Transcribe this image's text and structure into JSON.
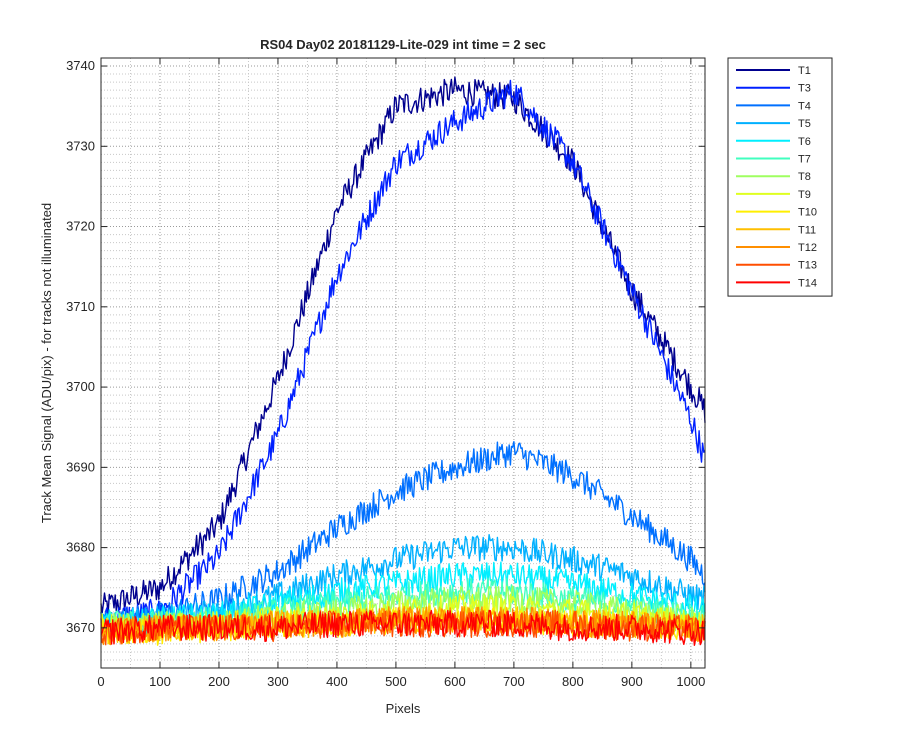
{
  "chart_data": {
    "type": "line",
    "title": "RS04 Day02 20181129-Lite-029 int time = 2 sec",
    "xlabel": "Pixels",
    "ylabel": "Track Mean Signal (ADU/pix) - for tracks not illuminated",
    "xlim": [
      0,
      1024
    ],
    "ylim": [
      3665,
      3741
    ],
    "xticks": [
      0,
      100,
      200,
      300,
      400,
      500,
      600,
      700,
      800,
      900,
      1000
    ],
    "yticks": [
      3670,
      3680,
      3690,
      3700,
      3710,
      3720,
      3730,
      3740
    ],
    "grid": "major and minor, dotted",
    "legend_position": "outside top-right",
    "series": [
      {
        "name": "T1",
        "color": "#00008F",
        "x": [
          0,
          100,
          200,
          300,
          400,
          500,
          600,
          700,
          800,
          900,
          1000,
          1024
        ],
        "values": [
          3672.5,
          3675,
          3683,
          3701,
          3722,
          3735,
          3737,
          3736,
          3728,
          3712,
          3700,
          3697
        ]
      },
      {
        "name": "T3",
        "color": "#0020FF",
        "x": [
          0,
          100,
          200,
          300,
          400,
          500,
          600,
          700,
          800,
          900,
          1000,
          1024
        ],
        "values": [
          3671,
          3672,
          3679,
          3694,
          3714,
          3728,
          3733,
          3737,
          3728,
          3712,
          3696,
          3691
        ]
      },
      {
        "name": "T4",
        "color": "#0070FF",
        "x": [
          0,
          100,
          200,
          300,
          400,
          500,
          600,
          700,
          800,
          900,
          1000,
          1024
        ],
        "values": [
          3670.5,
          3671.5,
          3673.5,
          3677,
          3682.5,
          3687,
          3690,
          3692,
          3689,
          3684,
          3678.5,
          3676.5
        ]
      },
      {
        "name": "T5",
        "color": "#00B0FF",
        "x": [
          0,
          100,
          200,
          300,
          400,
          500,
          600,
          700,
          800,
          900,
          1000,
          1024
        ],
        "values": [
          3670.5,
          3671,
          3672,
          3674,
          3676.5,
          3678.5,
          3680,
          3680,
          3678.5,
          3676.5,
          3674,
          3673.5
        ]
      },
      {
        "name": "T6",
        "color": "#00EFFF",
        "x": [
          0,
          100,
          200,
          300,
          400,
          500,
          600,
          700,
          800,
          900,
          1000,
          1024
        ],
        "values": [
          3670.5,
          3671,
          3671.5,
          3673,
          3674.5,
          3675.5,
          3676.5,
          3676.5,
          3675.5,
          3674,
          3672.5,
          3672
        ]
      },
      {
        "name": "T7",
        "color": "#40FFBF",
        "x": [
          0,
          100,
          200,
          300,
          400,
          500,
          600,
          700,
          800,
          900,
          1000,
          1024
        ],
        "values": [
          3670.5,
          3670.5,
          3671,
          3672,
          3673,
          3674,
          3674.5,
          3674.5,
          3673.5,
          3672.5,
          3671.5,
          3671
        ]
      },
      {
        "name": "T8",
        "color": "#9FFF60",
        "x": [
          0,
          100,
          200,
          300,
          400,
          500,
          600,
          700,
          800,
          900,
          1000,
          1024
        ],
        "values": [
          3670,
          3670.5,
          3670.5,
          3671.5,
          3672,
          3673,
          3673.5,
          3673.5,
          3673,
          3672,
          3671,
          3670.5
        ]
      },
      {
        "name": "T9",
        "color": "#DFFF20",
        "x": [
          0,
          100,
          200,
          300,
          400,
          500,
          600,
          700,
          800,
          900,
          1000,
          1024
        ],
        "values": [
          3670,
          3670,
          3670.5,
          3671,
          3671.5,
          3672,
          3672.5,
          3672.5,
          3672,
          3671.5,
          3670.5,
          3670.5
        ]
      },
      {
        "name": "T10",
        "color": "#FFEF00",
        "x": [
          0,
          100,
          200,
          300,
          400,
          500,
          600,
          700,
          800,
          900,
          1000,
          1024
        ],
        "values": [
          3669.5,
          3669.5,
          3670,
          3670.5,
          3670.5,
          3671,
          3671,
          3671,
          3670.5,
          3670.5,
          3670,
          3670
        ]
      },
      {
        "name": "T11",
        "color": "#FFBF00",
        "x": [
          0,
          100,
          200,
          300,
          400,
          500,
          600,
          700,
          800,
          900,
          1000,
          1024
        ],
        "values": [
          3669.5,
          3670,
          3670,
          3670.5,
          3670.5,
          3671,
          3671,
          3671,
          3670.5,
          3670.5,
          3670,
          3670
        ]
      },
      {
        "name": "T12",
        "color": "#FF8F00",
        "x": [
          0,
          100,
          200,
          300,
          400,
          500,
          600,
          700,
          800,
          900,
          1000,
          1024
        ],
        "values": [
          3669.5,
          3670,
          3670,
          3670.5,
          3670.5,
          3671,
          3671,
          3671,
          3670.5,
          3670.5,
          3670,
          3670
        ]
      },
      {
        "name": "T13",
        "color": "#FF4F00",
        "x": [
          0,
          100,
          200,
          300,
          400,
          500,
          600,
          700,
          800,
          900,
          1000,
          1024
        ],
        "values": [
          3669.5,
          3670,
          3670,
          3670,
          3670.5,
          3670.5,
          3670.5,
          3670.5,
          3670.5,
          3670,
          3670,
          3669.5
        ]
      },
      {
        "name": "T14",
        "color": "#FF0000",
        "x": [
          0,
          100,
          200,
          300,
          400,
          500,
          600,
          700,
          800,
          900,
          1000,
          1024
        ],
        "values": [
          3669.5,
          3670,
          3670,
          3670,
          3670.5,
          3670.5,
          3670.5,
          3670.5,
          3670,
          3670,
          3669.5,
          3669.5
        ]
      }
    ]
  }
}
